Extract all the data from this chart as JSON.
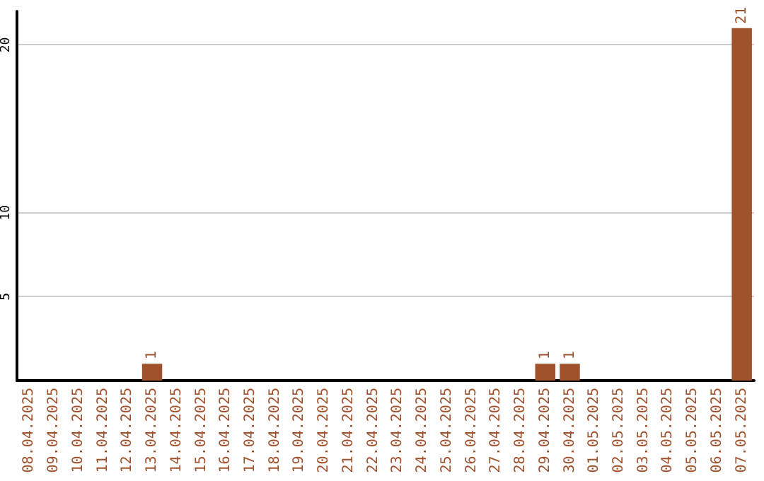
{
  "chart_data": {
    "type": "bar",
    "categories": [
      "08.04.2025",
      "09.04.2025",
      "10.04.2025",
      "11.04.2025",
      "12.04.2025",
      "13.04.2025",
      "14.04.2025",
      "15.04.2025",
      "16.04.2025",
      "17.04.2025",
      "18.04.2025",
      "19.04.2025",
      "20.04.2025",
      "21.04.2025",
      "22.04.2025",
      "23.04.2025",
      "24.04.2025",
      "25.04.2025",
      "26.04.2025",
      "27.04.2025",
      "28.04.2025",
      "29.04.2025",
      "30.04.2025",
      "01.05.2025",
      "02.05.2025",
      "03.05.2025",
      "04.05.2025",
      "05.05.2025",
      "06.05.2025",
      "07.05.2025"
    ],
    "values": [
      0,
      0,
      0,
      0,
      0,
      1,
      0,
      0,
      0,
      0,
      0,
      0,
      0,
      0,
      0,
      0,
      0,
      0,
      0,
      0,
      0,
      1,
      1,
      0,
      0,
      0,
      0,
      0,
      0,
      21
    ],
    "value_labels": [
      null,
      null,
      null,
      null,
      null,
      "1",
      null,
      null,
      null,
      null,
      null,
      null,
      null,
      null,
      null,
      null,
      null,
      null,
      null,
      null,
      null,
      "1",
      "1",
      null,
      null,
      null,
      null,
      null,
      null,
      "21"
    ],
    "color": "#a0522d",
    "ylim": [
      0,
      22
    ],
    "yticks": [
      5,
      10,
      20
    ],
    "grid": "y"
  }
}
